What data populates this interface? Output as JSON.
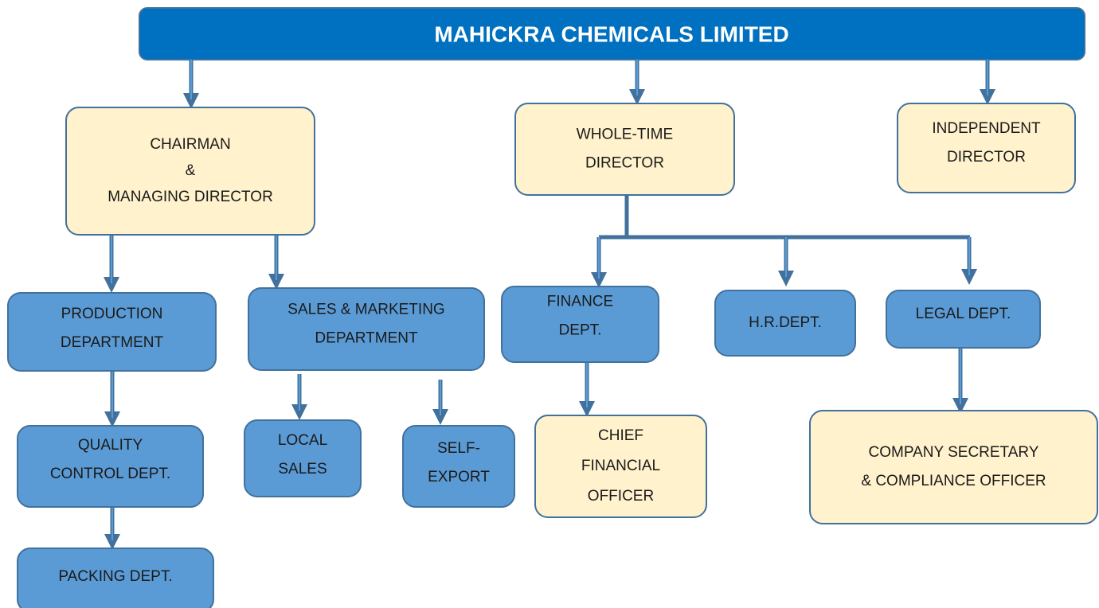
{
  "title": "MAHICKRA CHEMICALS LIMITED",
  "nodes": [
    {
      "label": [
        "CHAIRMAN",
        "&",
        "MANAGING DIRECTOR"
      ]
    },
    {
      "label": [
        "WHOLE-TIME",
        "DIRECTOR"
      ]
    },
    {
      "label": [
        "INDEPENDENT",
        "DIRECTOR"
      ]
    },
    {
      "label": [
        "PRODUCTION",
        "DEPARTMENT"
      ]
    },
    {
      "label": [
        "SALES & MARKETING",
        "DEPARTMENT"
      ]
    },
    {
      "label": [
        "FINANCE",
        "DEPT."
      ]
    },
    {
      "label": [
        "H.R.DEPT."
      ]
    },
    {
      "label": [
        "LEGAL DEPT."
      ]
    },
    {
      "label": [
        "QUALITY",
        "CONTROL DEPT."
      ]
    },
    {
      "label": [
        "LOCAL",
        "SALES"
      ]
    },
    {
      "label": [
        "SELF-",
        "EXPORT"
      ]
    },
    {
      "label": [
        "CHIEF",
        "FINANCIAL",
        "OFFICER"
      ]
    },
    {
      "label": [
        "COMPANY SECRETARY",
        "& COMPLIANCE OFFICER"
      ]
    },
    {
      "label": [
        "PACKING DEPT."
      ]
    }
  ]
}
